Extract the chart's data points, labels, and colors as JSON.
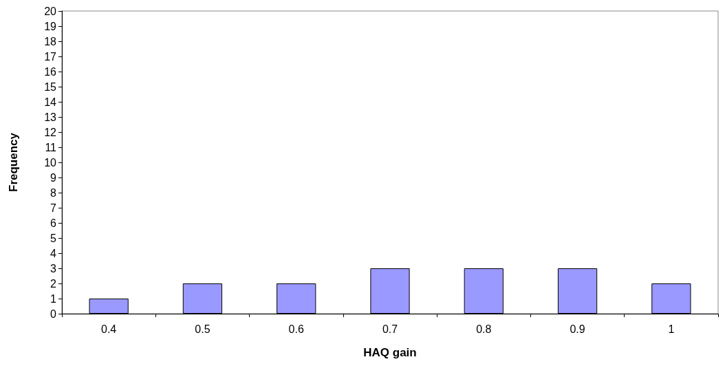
{
  "chart_data": {
    "type": "bar",
    "xlabel": "HAQ gain",
    "ylabel": "Frequency",
    "categories": [
      "0.4",
      "0.5",
      "0.6",
      "0.7",
      "0.8",
      "0.9",
      "1"
    ],
    "values": [
      1,
      2,
      2,
      3,
      3,
      3,
      2
    ],
    "color": "#9999ff",
    "ylim": [
      0,
      20
    ],
    "yticks": [
      0,
      1,
      2,
      3,
      4,
      5,
      6,
      7,
      8,
      9,
      10,
      11,
      12,
      13,
      14,
      15,
      16,
      17,
      18,
      19,
      20
    ],
    "grid": false
  }
}
